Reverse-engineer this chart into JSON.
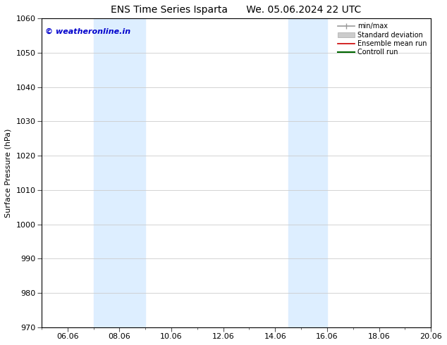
{
  "title": "ENS Time Series Isparta      We. 05.06.2024 22 UTC",
  "ylabel": "Surface Pressure (hPa)",
  "ylim": [
    970,
    1060
  ],
  "yticks": [
    970,
    980,
    990,
    1000,
    1010,
    1020,
    1030,
    1040,
    1050,
    1060
  ],
  "xtick_labels": [
    "06.06",
    "08.06",
    "10.06",
    "12.06",
    "14.06",
    "16.06",
    "18.06",
    "20.06"
  ],
  "xtick_days": [
    1,
    3,
    5,
    7,
    9,
    11,
    13,
    15
  ],
  "x_total_days": 15,
  "shaded_regions": [
    {
      "x_start": 2,
      "x_end": 4,
      "color": "#ddeeff"
    },
    {
      "x_start": 9.5,
      "x_end": 11,
      "color": "#ddeeff"
    }
  ],
  "legend_items": [
    {
      "label": "min/max",
      "color": "#999999",
      "lw": 1.2,
      "type": "line_with_caps"
    },
    {
      "label": "Standard deviation",
      "color": "#cccccc",
      "lw": 6,
      "type": "box"
    },
    {
      "label": "Ensemble mean run",
      "color": "#cc0000",
      "lw": 1.2,
      "type": "line"
    },
    {
      "label": "Controll run",
      "color": "#006600",
      "lw": 1.5,
      "type": "line"
    }
  ],
  "watermark": "© weatheronline.in",
  "watermark_color": "#0000cc",
  "background_color": "#ffffff",
  "plot_bg_color": "#ffffff",
  "grid_color": "#cccccc",
  "title_fontsize": 10,
  "label_fontsize": 8,
  "tick_fontsize": 8
}
